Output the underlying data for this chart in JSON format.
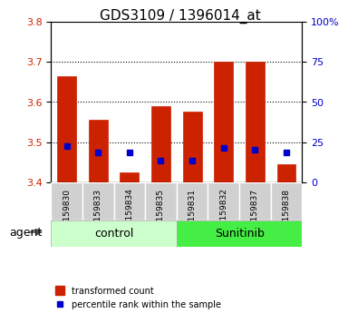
{
  "title": "GDS3109 / 1396014_at",
  "samples": [
    "GSM159830",
    "GSM159833",
    "GSM159834",
    "GSM159835",
    "GSM159831",
    "GSM159832",
    "GSM159837",
    "GSM159838"
  ],
  "bar_tops": [
    3.665,
    3.555,
    3.425,
    3.59,
    3.575,
    3.7,
    3.7,
    3.445
  ],
  "bar_base": 3.4,
  "blue_positions": [
    3.49,
    3.475,
    3.475,
    3.455,
    3.455,
    3.485,
    3.48,
    3.475
  ],
  "ylim_left": [
    3.4,
    3.8
  ],
  "ylim_right": [
    0,
    100
  ],
  "yticks_left": [
    3.4,
    3.5,
    3.6,
    3.7,
    3.8
  ],
  "yticks_right": [
    0,
    25,
    50,
    75,
    100
  ],
  "ytick_labels_right": [
    "0",
    "25",
    "50",
    "75",
    "100%"
  ],
  "control_samples": [
    "GSM159830",
    "GSM159833",
    "GSM159834",
    "GSM159835"
  ],
  "sunitinib_samples": [
    "GSM159831",
    "GSM159832",
    "GSM159837",
    "GSM159838"
  ],
  "control_label": "control",
  "sunitinib_label": "Sunitinib",
  "agent_label": "agent",
  "bar_color": "#cc2200",
  "blue_color": "#0000cc",
  "control_bg": "#ccffcc",
  "sunitinib_bg": "#44ee44",
  "bar_width": 0.6,
  "bar_edge_color": "#cc2200",
  "legend_red_label": "transformed count",
  "legend_blue_label": "percentile rank within the sample"
}
